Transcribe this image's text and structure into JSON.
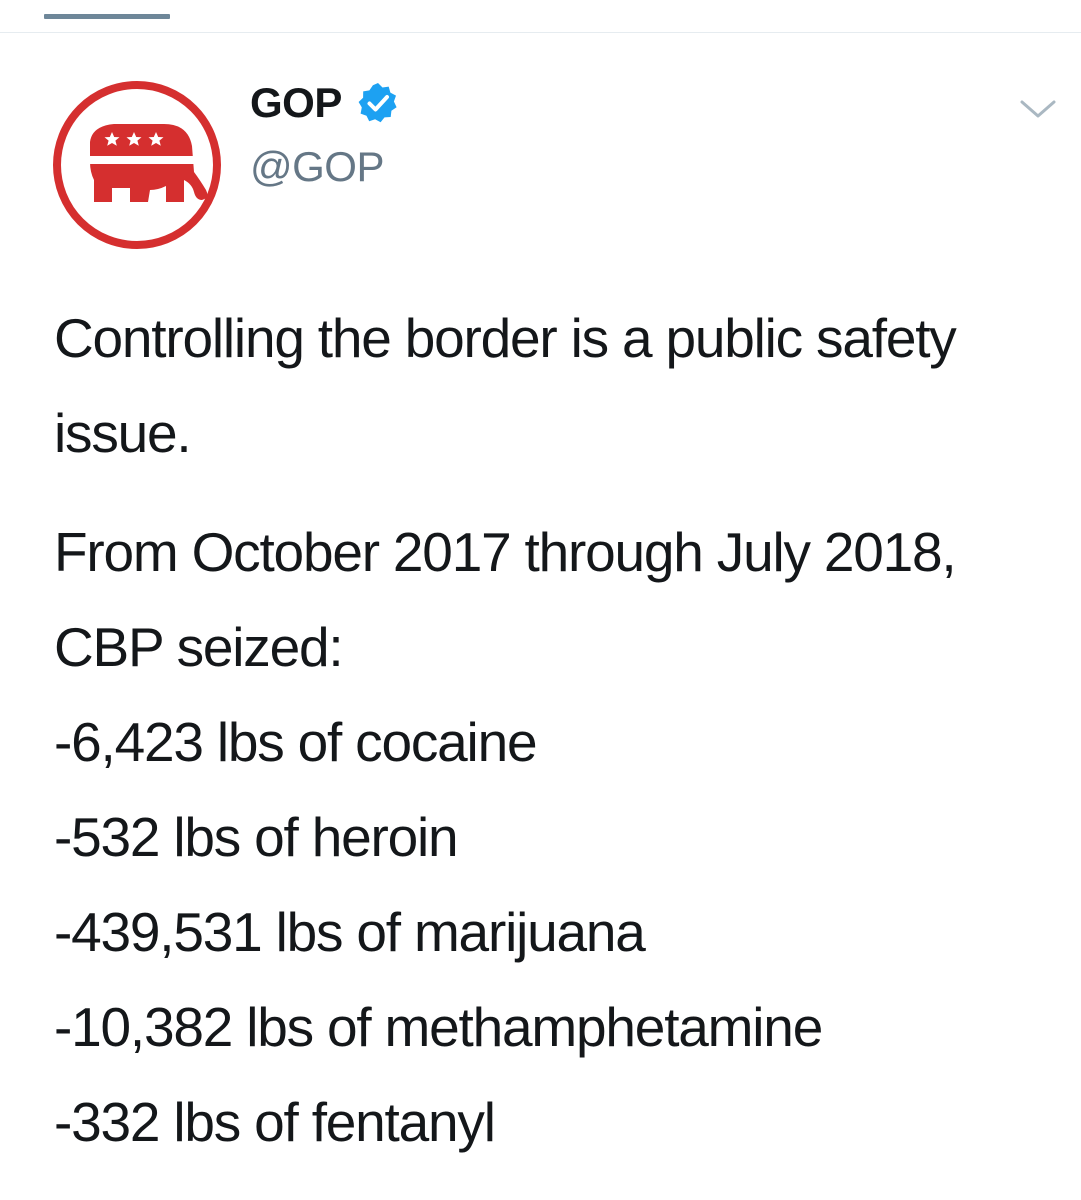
{
  "header": {
    "active_tab_color": "#6e8799"
  },
  "tweet": {
    "author": {
      "display_name": "GOP",
      "handle": "@GOP",
      "verified": true,
      "verified_icon": "verified-check-icon",
      "avatar_icon": "republican-elephant-logo"
    },
    "menu_icon": "chevron-down-icon",
    "body": {
      "paragraph1": "Controlling the border is a public safety issue.",
      "paragraph2_lines": [
        "From October 2017 through July 2018, CBP seized:",
        "-6,423 lbs of cocaine",
        "-532 lbs of heroin",
        "-439,531 lbs of marijuana",
        "-10,382 lbs of methamphetamine",
        "-332 lbs of fentanyl"
      ]
    },
    "colors": {
      "brand_red": "#d52f2f",
      "verified_blue": "#1da1f2",
      "text_primary": "#14171a",
      "text_secondary": "#657786"
    }
  }
}
